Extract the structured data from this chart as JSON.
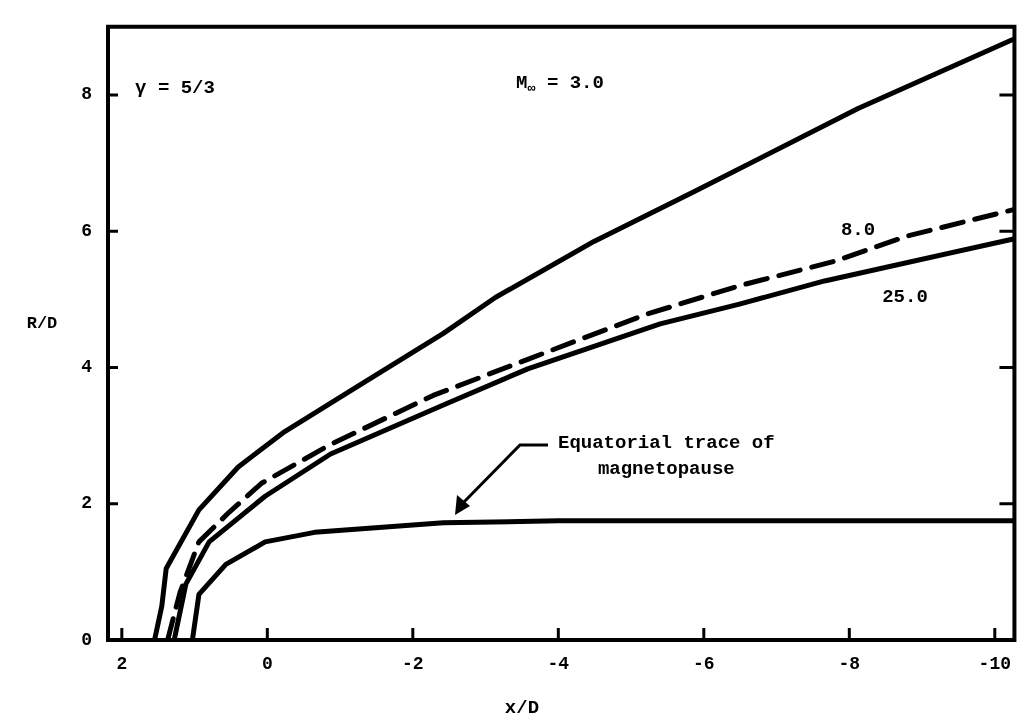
{
  "chart_data": {
    "type": "line",
    "xlabel": "x/D",
    "ylabel": "R/D",
    "xlim": [
      2.19,
      -10.27
    ],
    "ylim": [
      0,
      9
    ],
    "xticks": [
      2,
      0,
      -2,
      -4,
      -6,
      -8,
      -10
    ],
    "yticks": [
      0,
      2,
      4,
      6,
      8
    ],
    "grid": false,
    "legend": false,
    "marker": "none",
    "series": [
      {
        "color": "#000000",
        "line_style": "solid",
        "x": [
          1.55,
          1.45,
          1.39,
          0.94,
          0.4,
          -0.24,
          -1.33,
          -2.42,
          -3.14,
          -4.49,
          -5.85,
          -8.12,
          -10.24
        ],
        "values": [
          0,
          0.5,
          1.05,
          1.91,
          2.54,
          3.06,
          3.78,
          4.5,
          5.03,
          5.85,
          6.57,
          7.8,
          8.81
        ]
      },
      {
        "color": "#000000",
        "line_style": "dashed",
        "x": [
          1.37,
          1.2,
          0.94,
          0.53,
          0.08,
          -0.87,
          -2.28,
          -3.58,
          -5.21,
          -6.49,
          -7.8,
          -8.8,
          -10.27
        ],
        "values": [
          0,
          0.7,
          1.44,
          1.87,
          2.3,
          2.87,
          3.59,
          4.12,
          4.78,
          5.2,
          5.56,
          5.93,
          6.32
        ]
      },
      {
        "color": "#000000",
        "line_style": "solid",
        "x": [
          1.28,
          1.12,
          0.8,
          0.03,
          -0.87,
          -2.42,
          -3.58,
          -5.4,
          -6.49,
          -7.66,
          -10.27
        ],
        "values": [
          0,
          0.82,
          1.44,
          2.11,
          2.73,
          3.45,
          3.98,
          4.64,
          4.93,
          5.27,
          5.89
        ]
      },
      {
        "color": "#000000",
        "line_style": "solid",
        "x": [
          1.03,
          0.94,
          0.57,
          0.03,
          -0.65,
          -2.42,
          -4,
          -6,
          -8,
          -10.27
        ],
        "values": [
          0,
          0.67,
          1.11,
          1.44,
          1.58,
          1.72,
          1.75,
          1.75,
          1.75,
          1.75
        ]
      }
    ],
    "annotations": [
      "γ = 5/3",
      "M$_{∞}$ = 3.0",
      "8.0",
      "25.0",
      "Equatorial trace of magnetopause"
    ]
  }
}
